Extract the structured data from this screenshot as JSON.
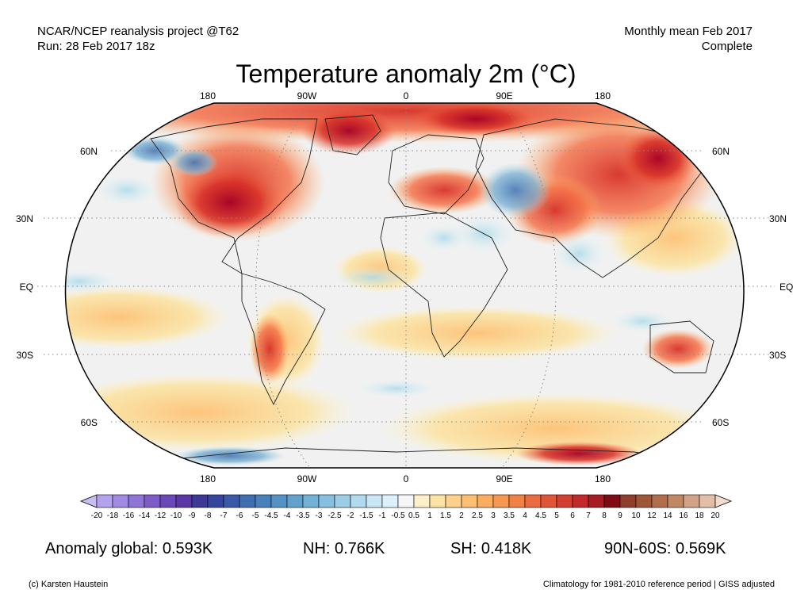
{
  "header": {
    "left_line1": "NCAR/NCEP reanalysis project @T62",
    "left_line2": "Run: 28 Feb 2017 18z",
    "right_line1": "Monthly mean Feb 2017",
    "right_line2": "Complete"
  },
  "title": "Temperature anomaly 2m (°C)",
  "map": {
    "projection": "Robinson",
    "lon_labels_top": [
      "180",
      "90W",
      "0",
      "90E",
      "180"
    ],
    "lon_labels_bottom": [
      "180",
      "90W",
      "0",
      "90E",
      "180"
    ],
    "lat_labels_left": [
      "60N",
      "30N",
      "EQ",
      "30S",
      "60S"
    ],
    "lat_labels_right": [
      "60N",
      "30N",
      "EQ",
      "30S",
      "60S"
    ],
    "ocean_color": "#f1f1f1",
    "warm_color": "#e34a33",
    "cold_color": "#6baed6"
  },
  "colorbar": {
    "labels": [
      "-20",
      "-18",
      "-16",
      "-14",
      "-12",
      "-10",
      "-9",
      "-8",
      "-7",
      "-6",
      "-5",
      "-4.5",
      "-4",
      "-3.5",
      "-3",
      "-2.5",
      "-2",
      "-1.5",
      "-1",
      "-0.5",
      "0.5",
      "1",
      "1.5",
      "2",
      "2.5",
      "3",
      "3.5",
      "4",
      "4.5",
      "5",
      "6",
      "7",
      "8",
      "9",
      "10",
      "12",
      "14",
      "16",
      "18",
      "20"
    ],
    "colors": [
      "#c8bdf2",
      "#b3a2ec",
      "#a08ae2",
      "#8f73d6",
      "#7d5cc8",
      "#6a48b8",
      "#5a36a6",
      "#3b3898",
      "#34469e",
      "#3a5aa8",
      "#3f6eb2",
      "#4880bb",
      "#5492c4",
      "#61a2cc",
      "#73b2d6",
      "#87c0de",
      "#9ccde6",
      "#b2daee",
      "#c8e6f4",
      "#def0f9",
      "#f6f6f6",
      "#fdf0c8",
      "#fde2a6",
      "#fdd18a",
      "#fcbf72",
      "#fbac5e",
      "#f69751",
      "#f08247",
      "#e96b3f",
      "#e05538",
      "#d33f31",
      "#c12a2a",
      "#a51c22",
      "#7e0b16",
      "#8e3e2b",
      "#9e5637",
      "#b06e4b",
      "#c18866",
      "#d1a285",
      "#e2bea8",
      "#f2dccd"
    ]
  },
  "stats": {
    "global": "Anomaly global: 0.593K",
    "nh": "NH: 0.766K",
    "sh": "SH: 0.418K",
    "polar": "90N-60S: 0.569K"
  },
  "footer": {
    "left": "(c) Karsten Haustein",
    "right": "Climatology for 1981-2010 reference period | GISS adjusted"
  }
}
